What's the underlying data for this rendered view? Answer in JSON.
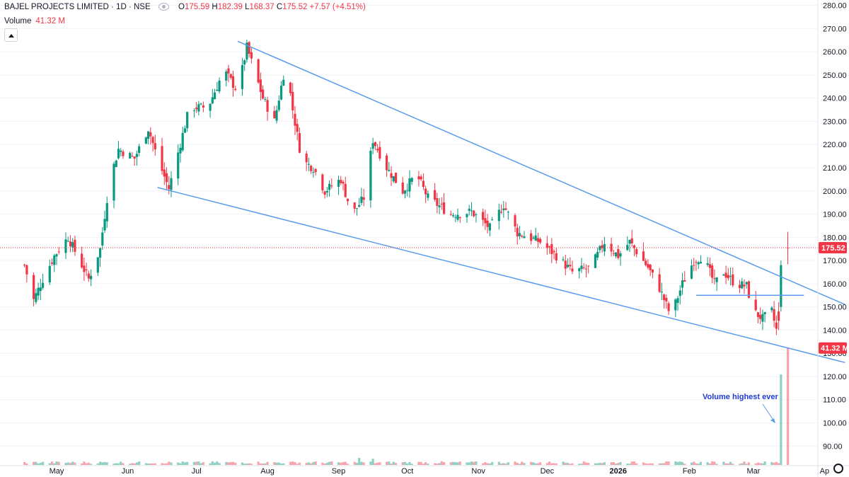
{
  "header": {
    "title": "BAJEL PROJECTS LIMITED · 1D · NSE",
    "open_label": "O",
    "open": "175.59",
    "high_label": "H",
    "high": "182.39",
    "low_label": "L",
    "low": "168.37",
    "close_label": "C",
    "close": "175.52",
    "change": "+7.57 (+4.51%)",
    "volume_label": "Volume",
    "volume_value": "41.32 M"
  },
  "annotation": {
    "text": "Volume highest ever"
  },
  "badges": {
    "price": "175.52",
    "volume": "41.32 M"
  },
  "colors": {
    "up": "#089981",
    "down": "#f23645",
    "trendline": "#5b9cec",
    "annotation": "#1e3bd6",
    "grid": "#f0f3fa"
  },
  "icons": [
    "eye-icon",
    "collapse-arrow-icon",
    "settings-gear-icon"
  ],
  "chart_data": {
    "type": "candlestick",
    "title": "BAJEL PROJECTS LIMITED · 1D · NSE",
    "ylim": [
      84,
      282
    ],
    "y_ticks": [
      "280.00",
      "270.00",
      "260.00",
      "250.00",
      "240.00",
      "230.00",
      "220.00",
      "210.00",
      "200.00",
      "190.00",
      "180.00",
      "170.00",
      "160.00",
      "150.00",
      "140.00",
      "130.00",
      "120.00",
      "110.00",
      "100.00",
      "90.00"
    ],
    "x_ticks": [
      "May",
      "Jun",
      "Jul",
      "Aug",
      "Sep",
      "Oct",
      "Nov",
      "Dec",
      "2026",
      "Feb",
      "Mar",
      "Ap"
    ],
    "last_close": 175.52,
    "last_volume": "41.32M",
    "anchors": [
      {
        "date": "2025-04-17",
        "price": 168
      },
      {
        "date": "2025-04-21",
        "price": 153
      },
      {
        "date": "2025-04-25",
        "price": 162
      },
      {
        "date": "2025-04-30",
        "price": 172
      },
      {
        "date": "2025-05-06",
        "price": 180
      },
      {
        "date": "2025-05-10",
        "price": 172
      },
      {
        "date": "2025-05-15",
        "price": 162
      },
      {
        "date": "2025-05-20",
        "price": 175
      },
      {
        "date": "2025-05-24",
        "price": 204
      },
      {
        "date": "2025-05-28",
        "price": 218
      },
      {
        "date": "2025-06-04",
        "price": 214
      },
      {
        "date": "2025-06-10",
        "price": 227
      },
      {
        "date": "2025-06-14",
        "price": 214
      },
      {
        "date": "2025-06-19",
        "price": 201
      },
      {
        "date": "2025-06-28",
        "price": 236
      },
      {
        "date": "2025-07-06",
        "price": 236
      },
      {
        "date": "2025-07-13",
        "price": 252
      },
      {
        "date": "2025-07-19",
        "price": 243
      },
      {
        "date": "2025-07-23",
        "price": 262
      },
      {
        "date": "2025-07-30",
        "price": 240
      },
      {
        "date": "2025-08-04",
        "price": 230
      },
      {
        "date": "2025-08-09",
        "price": 255
      },
      {
        "date": "2025-08-12",
        "price": 235
      },
      {
        "date": "2025-08-16",
        "price": 213
      },
      {
        "date": "2025-08-21",
        "price": 210
      },
      {
        "date": "2025-08-26",
        "price": 200
      },
      {
        "date": "2025-09-02",
        "price": 205
      },
      {
        "date": "2025-09-07",
        "price": 190
      },
      {
        "date": "2025-09-12",
        "price": 197
      },
      {
        "date": "2025-09-16",
        "price": 222
      },
      {
        "date": "2025-09-22",
        "price": 210
      },
      {
        "date": "2025-09-29",
        "price": 200
      },
      {
        "date": "2025-10-05",
        "price": 207
      },
      {
        "date": "2025-10-10",
        "price": 197
      },
      {
        "date": "2025-10-20",
        "price": 190
      },
      {
        "date": "2025-10-29",
        "price": 191
      },
      {
        "date": "2025-11-06",
        "price": 184
      },
      {
        "date": "2025-11-12",
        "price": 194
      },
      {
        "date": "2025-11-18",
        "price": 182
      },
      {
        "date": "2025-11-28",
        "price": 178
      },
      {
        "date": "2025-12-05",
        "price": 172
      },
      {
        "date": "2025-12-12",
        "price": 165
      },
      {
        "date": "2025-12-20",
        "price": 167
      },
      {
        "date": "2025-12-26",
        "price": 178
      },
      {
        "date": "2026-01-01",
        "price": 172
      },
      {
        "date": "2026-01-06",
        "price": 178
      },
      {
        "date": "2026-01-14",
        "price": 167
      },
      {
        "date": "2026-01-19",
        "price": 158
      },
      {
        "date": "2026-01-24",
        "price": 146
      },
      {
        "date": "2026-01-29",
        "price": 160
      },
      {
        "date": "2026-02-03",
        "price": 170
      },
      {
        "date": "2026-02-07",
        "price": 172
      },
      {
        "date": "2026-02-12",
        "price": 160
      },
      {
        "date": "2026-02-16",
        "price": 165
      },
      {
        "date": "2026-02-21",
        "price": 160
      },
      {
        "date": "2026-02-26",
        "price": 159
      },
      {
        "date": "2026-03-01",
        "price": 148
      },
      {
        "date": "2026-03-05",
        "price": 145
      },
      {
        "date": "2026-03-09",
        "price": 148
      },
      {
        "date": "2026-03-11",
        "price": 140
      }
    ],
    "final_candles": [
      {
        "date": "2026-03-12",
        "open": 148,
        "high": 152,
        "low": 140,
        "close": 144
      },
      {
        "date": "2026-03-13",
        "open": 150,
        "high": 170,
        "low": 148,
        "close": 168
      },
      {
        "date": "2026-03-16",
        "open": 175.59,
        "high": 182.39,
        "low": 168.37,
        "close": 175.52
      }
    ],
    "volume_spikes": [
      {
        "date": "2025-09-10",
        "value": 2.5
      },
      {
        "date": "2025-09-13",
        "value": 3.5
      },
      {
        "date": "2025-09-16",
        "value": 2.2
      },
      {
        "date": "2025-09-21",
        "value": 3.8
      },
      {
        "date": "2025-12-27",
        "value": 4.5
      },
      {
        "date": "2026-03-13",
        "value": 32
      },
      {
        "date": "2026-03-16",
        "value": 41.32
      }
    ],
    "trendlines": [
      {
        "name": "upper",
        "from": {
          "date": "2025-07-19",
          "price": 264.5
        },
        "to": {
          "date": "2026-04-10",
          "price": 151
        }
      },
      {
        "name": "lower",
        "from": {
          "date": "2025-06-14",
          "price": 201.5
        },
        "to": {
          "date": "2026-04-10",
          "price": 126
        }
      },
      {
        "name": "support",
        "from": {
          "date": "2026-02-04",
          "price": 155
        },
        "to": {
          "date": "2026-03-23",
          "price": 155
        }
      }
    ]
  }
}
